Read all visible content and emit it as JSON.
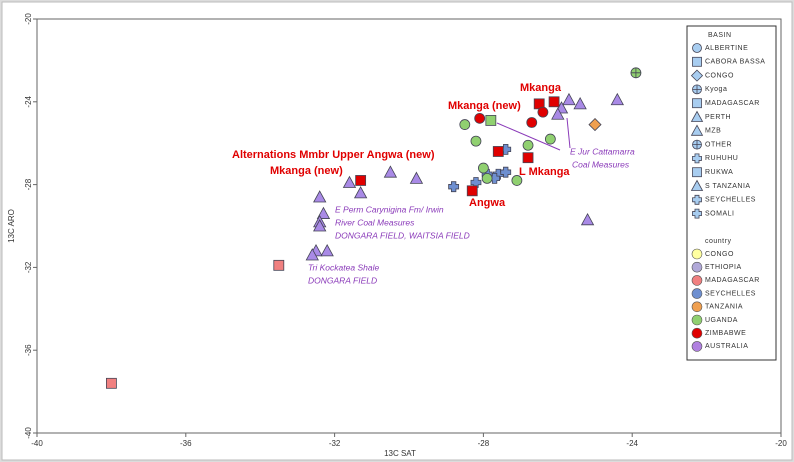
{
  "chart_data": {
    "type": "scatter",
    "x_label": "13C SAT",
    "y_label": "13C ARO",
    "xlim": [
      -40,
      -20
    ],
    "ylim": [
      -40,
      -20
    ],
    "xticks": [
      -40,
      -36,
      -32,
      -28,
      -24,
      -20
    ],
    "yticks": [
      -20,
      -24,
      -28,
      -32,
      -36,
      -40
    ],
    "points": [
      {
        "x": -32.4,
        "y": -28.6,
        "shape": "triangle",
        "color": "#a98ae6"
      },
      {
        "x": -32.3,
        "y": -29.4,
        "shape": "triangle",
        "color": "#a98ae6"
      },
      {
        "x": -32.4,
        "y": -29.8,
        "shape": "triangle",
        "color": "#a98ae6"
      },
      {
        "x": -32.4,
        "y": -30.0,
        "shape": "triangle",
        "color": "#a98ae6"
      },
      {
        "x": -32.5,
        "y": -31.2,
        "shape": "triangle",
        "color": "#a98ae6"
      },
      {
        "x": -32.6,
        "y": -31.4,
        "shape": "triangle",
        "color": "#a98ae6"
      },
      {
        "x": -32.2,
        "y": -31.2,
        "shape": "triangle",
        "color": "#a98ae6"
      },
      {
        "x": -31.6,
        "y": -27.9,
        "shape": "triangle",
        "color": "#a98ae6"
      },
      {
        "x": -31.3,
        "y": -28.4,
        "shape": "triangle",
        "color": "#a98ae6"
      },
      {
        "x": -30.5,
        "y": -27.4,
        "shape": "triangle",
        "color": "#a98ae6"
      },
      {
        "x": -29.8,
        "y": -27.7,
        "shape": "triangle",
        "color": "#a98ae6"
      },
      {
        "x": -25.9,
        "y": -24.3,
        "shape": "triangle",
        "color": "#a98ae6"
      },
      {
        "x": -25.7,
        "y": -23.9,
        "shape": "triangle",
        "color": "#a98ae6"
      },
      {
        "x": -25.4,
        "y": -24.1,
        "shape": "triangle",
        "color": "#a98ae6"
      },
      {
        "x": -26.0,
        "y": -24.6,
        "shape": "triangle",
        "color": "#a98ae6"
      },
      {
        "x": -24.4,
        "y": -23.9,
        "shape": "triangle",
        "color": "#a98ae6"
      },
      {
        "x": -25.2,
        "y": -29.7,
        "shape": "triangle",
        "color": "#a98ae6"
      },
      {
        "x": -28.8,
        "y": -28.1,
        "shape": "plus",
        "color": "#6e8fd0"
      },
      {
        "x": -28.2,
        "y": -27.9,
        "shape": "plus",
        "color": "#6e8fd0"
      },
      {
        "x": -27.9,
        "y": -27.5,
        "shape": "plus",
        "color": "#6e8fd0"
      },
      {
        "x": -27.6,
        "y": -27.5,
        "shape": "plus",
        "color": "#6e8fd0"
      },
      {
        "x": -27.4,
        "y": -27.4,
        "shape": "plus",
        "color": "#6e8fd0"
      },
      {
        "x": -27.7,
        "y": -27.7,
        "shape": "plus",
        "color": "#6e8fd0"
      },
      {
        "x": -27.4,
        "y": -26.3,
        "shape": "plus",
        "color": "#6e8fd0"
      },
      {
        "x": -28.5,
        "y": -25.1,
        "shape": "circle",
        "color": "#90d070"
      },
      {
        "x": -28.2,
        "y": -25.9,
        "shape": "circle",
        "color": "#90d070"
      },
      {
        "x": -28.0,
        "y": -27.2,
        "shape": "circle",
        "color": "#90d070"
      },
      {
        "x": -27.9,
        "y": -27.7,
        "shape": "circle",
        "color": "#90d070"
      },
      {
        "x": -27.1,
        "y": -27.8,
        "shape": "circle",
        "color": "#90d070"
      },
      {
        "x": -26.8,
        "y": -26.1,
        "shape": "circle",
        "color": "#90d070"
      },
      {
        "x": -26.2,
        "y": -25.8,
        "shape": "circle",
        "color": "#90d070"
      },
      {
        "x": -23.9,
        "y": -22.6,
        "shape": "circle-cross",
        "color": "#90d070"
      },
      {
        "x": -26.5,
        "y": -24.1,
        "shape": "square",
        "color": "#e00000"
      },
      {
        "x": -26.1,
        "y": -24.0,
        "shape": "square",
        "color": "#e00000"
      },
      {
        "x": -26.8,
        "y": -26.7,
        "shape": "square",
        "color": "#e00000"
      },
      {
        "x": -28.3,
        "y": -28.3,
        "shape": "square",
        "color": "#e00000"
      },
      {
        "x": -27.6,
        "y": -26.4,
        "shape": "square",
        "color": "#e00000"
      },
      {
        "x": -31.3,
        "y": -27.8,
        "shape": "square",
        "color": "#e00000"
      },
      {
        "x": -27.8,
        "y": -24.9,
        "shape": "square",
        "color": "#90d070"
      },
      {
        "x": -28.1,
        "y": -24.8,
        "shape": "circle",
        "color": "#e00000"
      },
      {
        "x": -26.7,
        "y": -25.0,
        "shape": "circle",
        "color": "#e00000"
      },
      {
        "x": -26.4,
        "y": -24.5,
        "shape": "circle",
        "color": "#e00000"
      },
      {
        "x": -25.0,
        "y": -25.1,
        "shape": "diamond",
        "color": "#f0a050"
      },
      {
        "x": -33.5,
        "y": -31.9,
        "shape": "square",
        "color": "#f08080"
      },
      {
        "x": -38.0,
        "y": -37.6,
        "shape": "square",
        "color": "#f08080"
      }
    ],
    "annotations": [
      "Mkanga (new)",
      "Mkanga",
      "Alternations Mmbr Upper Angwa (new)",
      "Mkanga (new)",
      "L Mkanga",
      "Angwa",
      "E Jur Cattamarra",
      "Coal Measures",
      "E Perm Carynigina Fm/ Irwin",
      "River Coal Measures",
      "DONGARA FIELD, WAITSIA FIELD",
      "Tri Kockatea Shale",
      "DONGARA FIELD"
    ],
    "legend_basin_title": "BASIN",
    "legend_basin": [
      {
        "name": "ALBERTINE",
        "shape": "circle"
      },
      {
        "name": "CABORA BASSA",
        "shape": "square"
      },
      {
        "name": "CONGO",
        "shape": "diamond"
      },
      {
        "name": "Kyoga",
        "shape": "circle-cross"
      },
      {
        "name": "MADAGASCAR",
        "shape": "square"
      },
      {
        "name": "PERTH",
        "shape": "triangle"
      },
      {
        "name": "MZB",
        "shape": "triangle"
      },
      {
        "name": "OTHER",
        "shape": "circle-cross"
      },
      {
        "name": "RUHUHU",
        "shape": "plus"
      },
      {
        "name": "RUKWA",
        "shape": "square"
      },
      {
        "name": "S TANZANIA",
        "shape": "triangle"
      },
      {
        "name": "SEYCHELLES",
        "shape": "plus"
      },
      {
        "name": "SOMALI",
        "shape": "plus"
      }
    ],
    "legend_country_title": "country",
    "legend_country": [
      {
        "name": "CONGO",
        "color": "#ffffa0"
      },
      {
        "name": "ETHIOPIA",
        "color": "#b0a8d8"
      },
      {
        "name": "MADAGASCAR",
        "color": "#f08080"
      },
      {
        "name": "SEYCHELLES",
        "color": "#6e8fd0"
      },
      {
        "name": "TANZANIA",
        "color": "#f0a050"
      },
      {
        "name": "UGANDA",
        "color": "#90d070"
      },
      {
        "name": "ZIMBABWE",
        "color": "#e00000"
      },
      {
        "name": "AUSTRALIA",
        "color": "#b080e0"
      }
    ]
  }
}
